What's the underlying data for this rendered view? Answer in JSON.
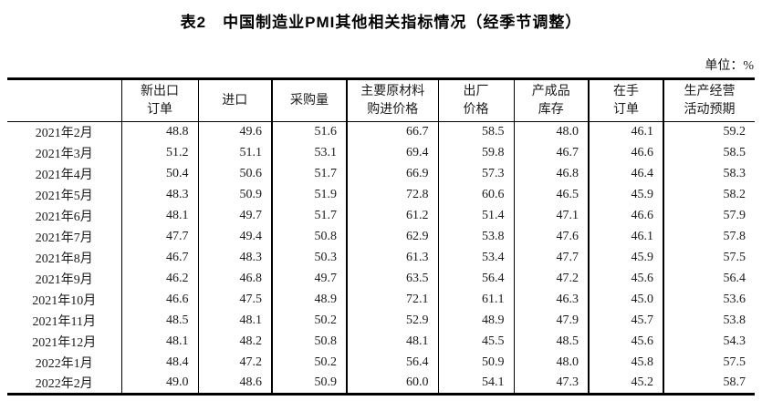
{
  "page": {
    "title": "表2　中国制造业PMI其他相关指标情况（经季节调整）",
    "unit_label": "单位：%"
  },
  "table": {
    "columns": [
      {
        "name": "month",
        "lines": []
      },
      {
        "name": "new-export-orders",
        "lines": [
          "新出口",
          "订单"
        ]
      },
      {
        "name": "imports",
        "lines": [
          "进口"
        ]
      },
      {
        "name": "purchasing-volume",
        "lines": [
          "采购量"
        ]
      },
      {
        "name": "raw-material-price",
        "lines": [
          "主要原材料",
          "购进价格"
        ]
      },
      {
        "name": "ex-factory-price",
        "lines": [
          "出厂",
          "价格"
        ]
      },
      {
        "name": "finished-goods-inventory",
        "lines": [
          "产成品",
          "库存"
        ]
      },
      {
        "name": "orders-on-hand",
        "lines": [
          "在手",
          "订单"
        ]
      },
      {
        "name": "business-expectation",
        "lines": [
          "生产经营",
          "活动预期"
        ]
      }
    ],
    "rows": [
      {
        "month": "2021年2月",
        "values": [
          "48.8",
          "49.6",
          "51.6",
          "66.7",
          "58.5",
          "48.0",
          "46.1",
          "59.2"
        ]
      },
      {
        "month": "2021年3月",
        "values": [
          "51.2",
          "51.1",
          "53.1",
          "69.4",
          "59.8",
          "46.7",
          "46.6",
          "58.5"
        ]
      },
      {
        "month": "2021年4月",
        "values": [
          "50.4",
          "50.6",
          "51.7",
          "66.9",
          "57.3",
          "46.8",
          "46.4",
          "58.3"
        ]
      },
      {
        "month": "2021年5月",
        "values": [
          "48.3",
          "50.9",
          "51.9",
          "72.8",
          "60.6",
          "46.5",
          "45.9",
          "58.2"
        ]
      },
      {
        "month": "2021年6月",
        "values": [
          "48.1",
          "49.7",
          "51.7",
          "61.2",
          "51.4",
          "47.1",
          "46.6",
          "57.9"
        ]
      },
      {
        "month": "2021年7月",
        "values": [
          "47.7",
          "49.4",
          "50.8",
          "62.9",
          "53.8",
          "47.6",
          "46.1",
          "57.8"
        ]
      },
      {
        "month": "2021年8月",
        "values": [
          "46.7",
          "48.3",
          "50.3",
          "61.3",
          "53.4",
          "47.7",
          "45.9",
          "57.5"
        ]
      },
      {
        "month": "2021年9月",
        "values": [
          "46.2",
          "46.8",
          "49.7",
          "63.5",
          "56.4",
          "47.2",
          "45.6",
          "56.4"
        ]
      },
      {
        "month": "2021年10月",
        "values": [
          "46.6",
          "47.5",
          "48.9",
          "72.1",
          "61.1",
          "46.3",
          "45.0",
          "53.6"
        ]
      },
      {
        "month": "2021年11月",
        "values": [
          "48.5",
          "48.1",
          "50.2",
          "52.9",
          "48.9",
          "47.9",
          "45.7",
          "53.8"
        ]
      },
      {
        "month": "2021年12月",
        "values": [
          "48.1",
          "48.2",
          "50.8",
          "48.1",
          "45.5",
          "48.5",
          "45.6",
          "54.3"
        ]
      },
      {
        "month": "2022年1月",
        "values": [
          "48.4",
          "47.2",
          "50.2",
          "56.4",
          "50.9",
          "48.0",
          "45.8",
          "57.5"
        ]
      },
      {
        "month": "2022年2月",
        "values": [
          "49.0",
          "48.6",
          "50.9",
          "60.0",
          "54.1",
          "47.3",
          "45.2",
          "58.7"
        ]
      }
    ],
    "colors": {
      "border": "#000000",
      "text": "#1a1a1a",
      "background": "#ffffff"
    }
  }
}
